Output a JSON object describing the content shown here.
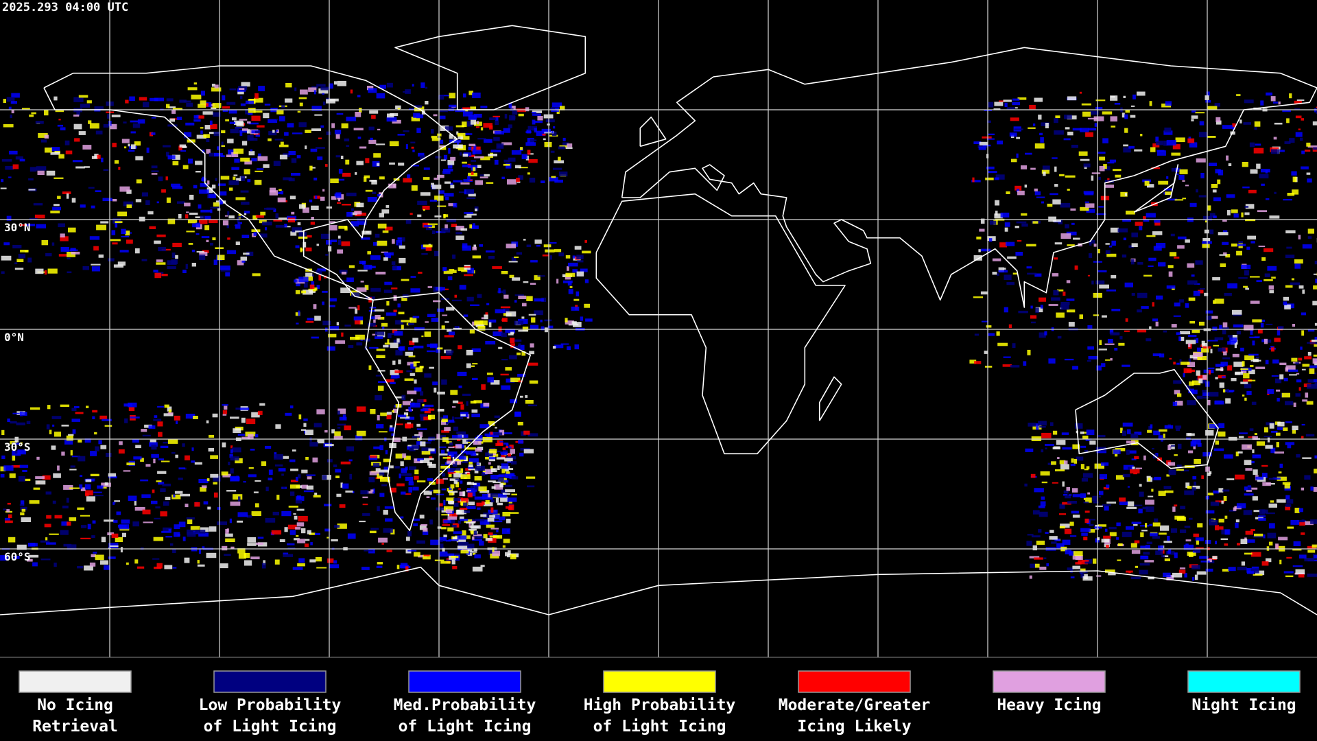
{
  "header": {
    "timestamp": "2025.293 04:00 UTC"
  },
  "map": {
    "lat_labels": [
      "30°N",
      "0°N",
      "30°S",
      "60°S"
    ]
  },
  "legend": {
    "items": [
      {
        "color": "#f0f0f0",
        "lines": [
          "No Icing",
          "Retrieval"
        ]
      },
      {
        "color": "#000080",
        "lines": [
          "Low Probability",
          "of Light Icing"
        ]
      },
      {
        "color": "#0000ff",
        "lines": [
          "Med.Probability",
          "of Light Icing"
        ]
      },
      {
        "color": "#ffff00",
        "lines": [
          "High Probability",
          "of Light Icing"
        ]
      },
      {
        "color": "#ff0000",
        "lines": [
          "Moderate/Greater",
          "Icing Likely"
        ]
      },
      {
        "color": "#e0a0e0",
        "lines": [
          "Heavy Icing"
        ]
      },
      {
        "color": "#00ffff",
        "lines": [
          "Night Icing"
        ]
      }
    ]
  }
}
